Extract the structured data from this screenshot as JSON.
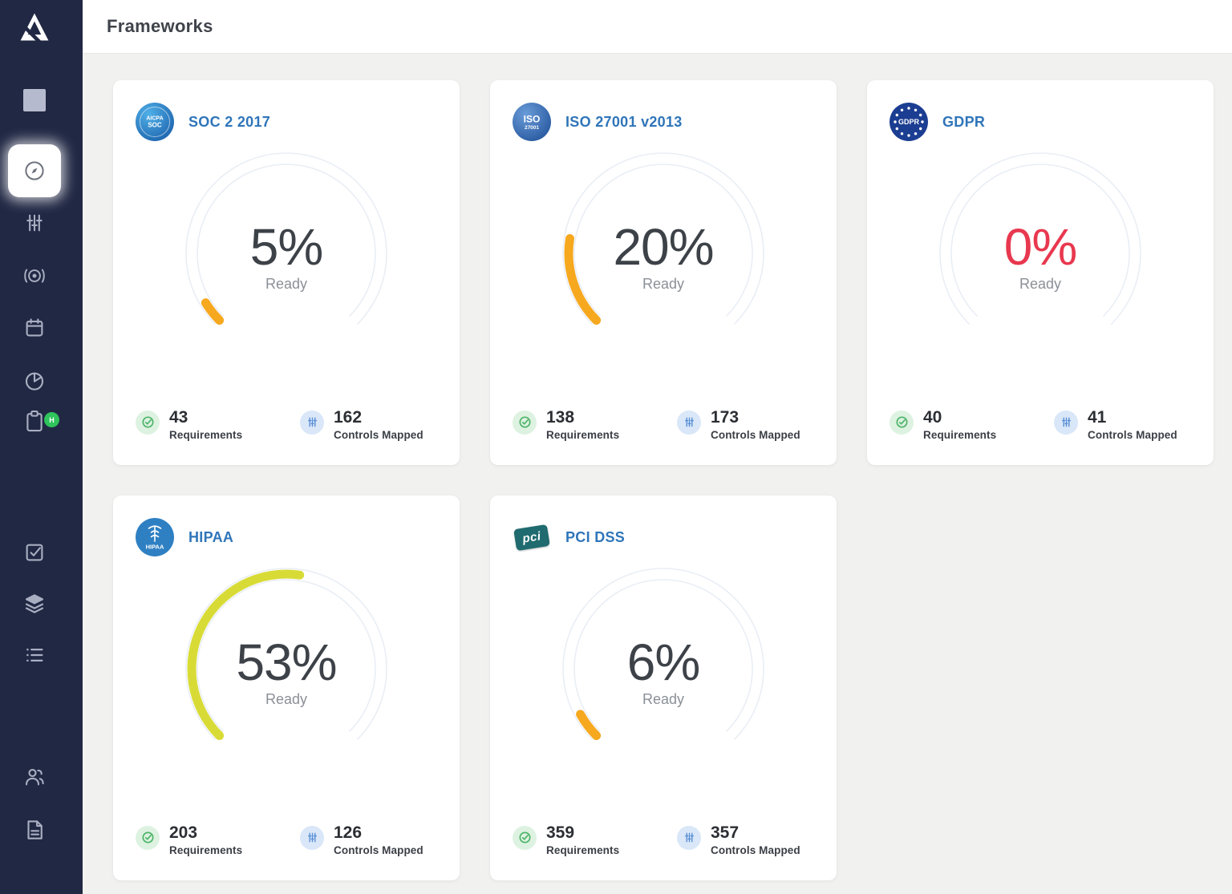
{
  "header": {
    "title": "Frameworks"
  },
  "colors": {
    "sidebar_bg": "#212844",
    "track": "#e9eef5",
    "orange": "#f6a81f",
    "yellow_green": "#d8db36",
    "red": "#e8384f",
    "title_blue": "#2f75b9",
    "stat_green": "#4db469",
    "stat_blue": "#5a8fd6",
    "badge_green": "#2fc45c"
  },
  "gauge": {
    "track_color": "#e9eef5",
    "start_deg": 225,
    "sweep_deg": 270
  },
  "sidebar": {
    "items": [
      {
        "icon": "drata-logo"
      },
      {
        "icon": "dashboard-square"
      },
      {
        "icon": "compass",
        "active": true
      },
      {
        "icon": "sliders"
      },
      {
        "icon": "radar"
      },
      {
        "icon": "calendar"
      },
      {
        "icon": "pie-chart"
      },
      {
        "icon": "clipboard",
        "badge": "H"
      },
      {
        "icon": "check-square"
      },
      {
        "icon": "layers"
      },
      {
        "icon": "list"
      },
      {
        "icon": "users"
      },
      {
        "icon": "document"
      }
    ]
  },
  "cards": [
    {
      "title": "SOC 2 2017",
      "badge": {
        "line1": "AICPA",
        "line2": "SOC"
      },
      "ready_percent": 5,
      "percent_display": "5%",
      "ready_label": "Ready",
      "arc_color": "#f6a81f",
      "percent_color": "#3d4248",
      "requirements": {
        "value": "43",
        "label": "Requirements"
      },
      "controls": {
        "value": "162",
        "label": "Controls Mapped"
      }
    },
    {
      "title": "ISO 27001 v2013",
      "badge": {
        "line1": "ISO",
        "line2": "27001"
      },
      "ready_percent": 20,
      "percent_display": "20%",
      "ready_label": "Ready",
      "arc_color": "#f6a81f",
      "percent_color": "#3d4248",
      "requirements": {
        "value": "138",
        "label": "Requirements"
      },
      "controls": {
        "value": "173",
        "label": "Controls Mapped"
      }
    },
    {
      "title": "GDPR",
      "badge": {
        "text": "GDPR"
      },
      "ready_percent": 0,
      "percent_display": "0%",
      "ready_label": "Ready",
      "arc_color": "#f6a81f",
      "percent_color": "#e8384f",
      "requirements": {
        "value": "40",
        "label": "Requirements"
      },
      "controls": {
        "value": "41",
        "label": "Controls Mapped"
      }
    },
    {
      "title": "HIPAA",
      "badge": {
        "text": "HIPAA"
      },
      "ready_percent": 53,
      "percent_display": "53%",
      "ready_label": "Ready",
      "arc_color": "#d8db36",
      "percent_color": "#3d4248",
      "requirements": {
        "value": "203",
        "label": "Requirements"
      },
      "controls": {
        "value": "126",
        "label": "Controls Mapped"
      }
    },
    {
      "title": "PCI DSS",
      "badge": {
        "text": "pci"
      },
      "ready_percent": 6,
      "percent_display": "6%",
      "ready_label": "Ready",
      "arc_color": "#f6a81f",
      "percent_color": "#3d4248",
      "requirements": {
        "value": "359",
        "label": "Requirements"
      },
      "controls": {
        "value": "357",
        "label": "Controls Mapped"
      }
    }
  ]
}
